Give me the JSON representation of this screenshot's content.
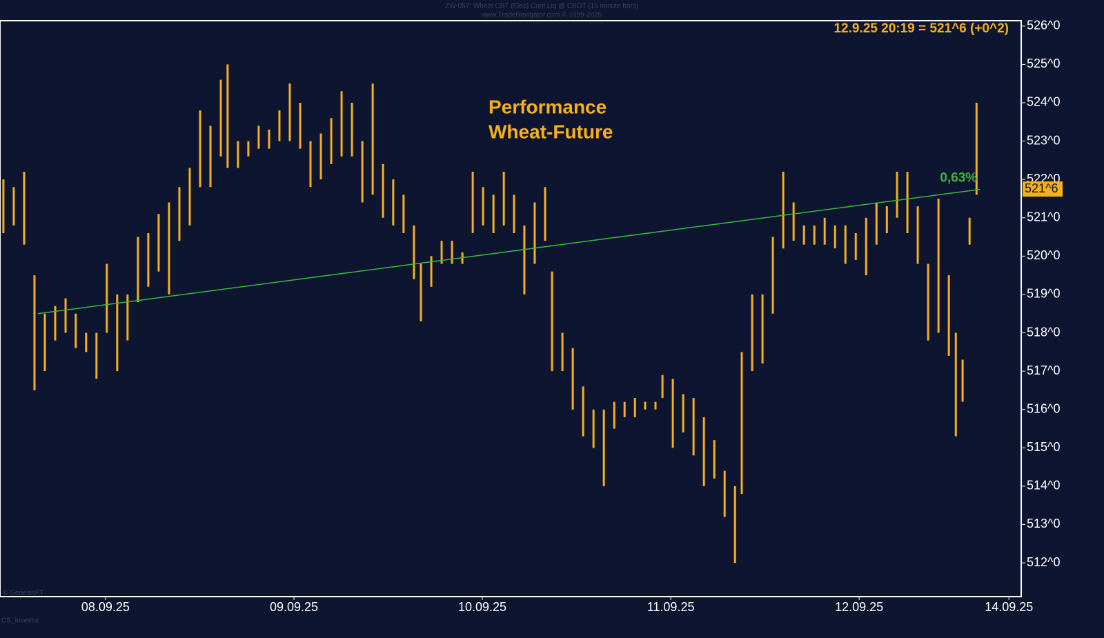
{
  "chart_data": {
    "type": "range-bar",
    "title": "ZW-057:  Wheat CBT (Elec) Cont Liq @ CBOT  (15 minute bars)",
    "subtitle": "www.TradeNavigator.com © 1999-2025",
    "quote": "12.9.25 20:19 = 521^6 (+0^2)",
    "annotation": [
      "Performance",
      "Wheat-Future"
    ],
    "credit": "© GenesisFT",
    "author": "CS_Investor",
    "color": "#f5b01c",
    "background": "#0e1530",
    "x": [
      -0.542,
      -0.487,
      -0.432,
      -0.377,
      -0.322,
      -0.267,
      -0.212,
      -0.158,
      -0.103,
      -0.048,
      0.007,
      0.062,
      0.117,
      0.172,
      0.227,
      0.282,
      0.337,
      0.392,
      0.447,
      0.502,
      0.557,
      0.612,
      0.648,
      0.703,
      0.758,
      0.813,
      0.868,
      0.923,
      0.978,
      1.033,
      1.088,
      1.143,
      1.198,
      1.253,
      1.308,
      1.363,
      1.418,
      1.473,
      1.527,
      1.582,
      1.637,
      1.674,
      1.729,
      1.784,
      1.839,
      1.894,
      1.949,
      2.004,
      2.059,
      2.114,
      2.168,
      2.223,
      2.278,
      2.333,
      2.37,
      2.425,
      2.48,
      2.535,
      2.59,
      2.645,
      2.7,
      2.755,
      2.81,
      2.864,
      2.919,
      2.956,
      3.011,
      3.066,
      3.121,
      3.176,
      3.231,
      3.286,
      3.341,
      3.377,
      3.432,
      3.487,
      3.542,
      3.597,
      3.652,
      3.707,
      3.762,
      3.817,
      3.872,
      3.927,
      3.982,
      4.037,
      4.092,
      4.147,
      4.201,
      4.256,
      4.311,
      4.366,
      4.421,
      4.476,
      4.513,
      4.549,
      4.586,
      4.623
    ],
    "high": [
      522.0,
      521.8,
      522.2,
      519.5,
      518.5,
      518.7,
      518.9,
      518.5,
      518.0,
      518.0,
      519.8,
      519.0,
      519.0,
      520.5,
      520.6,
      521.1,
      521.4,
      521.8,
      522.3,
      523.8,
      523.4,
      524.6,
      525.0,
      523.0,
      523.0,
      523.4,
      523.3,
      523.8,
      524.5,
      524.0,
      523.0,
      523.2,
      523.6,
      524.3,
      524.0,
      523.0,
      524.5,
      522.4,
      522.0,
      521.6,
      520.8,
      519.8,
      520.0,
      520.4,
      520.4,
      520.1,
      522.2,
      521.8,
      521.6,
      522.2,
      521.6,
      520.8,
      521.4,
      521.8,
      519.6,
      518.0,
      517.6,
      516.6,
      516.0,
      516.0,
      516.2,
      516.2,
      516.3,
      516.2,
      516.2,
      516.9,
      516.8,
      516.4,
      516.3,
      515.8,
      515.2,
      514.4,
      514.0,
      517.5,
      519.0,
      519.0,
      520.5,
      522.2,
      521.4,
      520.8,
      520.8,
      521.0,
      520.8,
      520.8,
      520.6,
      521.0,
      521.4,
      521.3,
      522.2,
      522.2,
      521.3,
      519.8,
      521.5,
      519.5,
      518.0,
      517.3,
      521.0,
      524.0
    ],
    "low": [
      520.6,
      520.8,
      520.3,
      516.5,
      517.0,
      517.8,
      518.0,
      517.6,
      517.5,
      516.8,
      518.0,
      517.0,
      517.8,
      518.8,
      519.2,
      519.6,
      519.0,
      520.4,
      520.8,
      521.8,
      521.8,
      522.6,
      522.3,
      522.3,
      522.6,
      522.8,
      522.8,
      523.0,
      523.0,
      522.8,
      521.8,
      522.0,
      522.4,
      522.6,
      522.6,
      521.4,
      521.6,
      521.0,
      520.8,
      520.6,
      519.4,
      518.3,
      519.2,
      519.8,
      519.8,
      519.8,
      520.6,
      520.8,
      520.6,
      520.8,
      520.6,
      519.0,
      519.8,
      520.4,
      517.0,
      517.0,
      516.0,
      515.3,
      515.0,
      514.0,
      515.5,
      515.8,
      515.8,
      516.0,
      516.0,
      516.3,
      515.0,
      515.4,
      514.8,
      514.0,
      514.2,
      513.2,
      512.0,
      513.8,
      517.0,
      517.2,
      518.5,
      520.2,
      520.4,
      520.3,
      520.3,
      520.3,
      520.2,
      519.8,
      519.9,
      519.5,
      520.3,
      520.6,
      521.0,
      520.6,
      519.8,
      517.8,
      518.0,
      517.4,
      515.3,
      516.2,
      520.3,
      521.6
    ],
    "trendline": {
      "x": [
        -0.359,
        4.641
      ],
      "y": [
        518.5,
        521.74
      ],
      "label": "0,63%",
      "color": "#3cb83c"
    },
    "last": {
      "value": 521.75,
      "label": "521^6"
    },
    "xlim": [
      -0.56,
      4.86
    ],
    "ylim": [
      511.12,
      526.14
    ],
    "xticks": [
      {
        "value": 0,
        "label": "08.09.25"
      },
      {
        "value": 1,
        "label": "09.09.25"
      },
      {
        "value": 2,
        "label": "10.09.25"
      },
      {
        "value": 3,
        "label": "11.09.25"
      },
      {
        "value": 4,
        "label": "12.09.25"
      },
      {
        "value": 4.795,
        "label": "14.09.25"
      }
    ],
    "yticks": [
      {
        "value": 512,
        "label": "512^0"
      },
      {
        "value": 513,
        "label": "513^0"
      },
      {
        "value": 514,
        "label": "514^0"
      },
      {
        "value": 515,
        "label": "515^0"
      },
      {
        "value": 516,
        "label": "516^0"
      },
      {
        "value": 517,
        "label": "517^0"
      },
      {
        "value": 518,
        "label": "518^0"
      },
      {
        "value": 519,
        "label": "519^0"
      },
      {
        "value": 520,
        "label": "520^0"
      },
      {
        "value": 521,
        "label": "521^0"
      },
      {
        "value": 522,
        "label": "522^0"
      },
      {
        "value": 523,
        "label": "523^0"
      },
      {
        "value": 524,
        "label": "524^0"
      },
      {
        "value": 525,
        "label": "525^0"
      },
      {
        "value": 526,
        "label": "526^0"
      }
    ]
  }
}
